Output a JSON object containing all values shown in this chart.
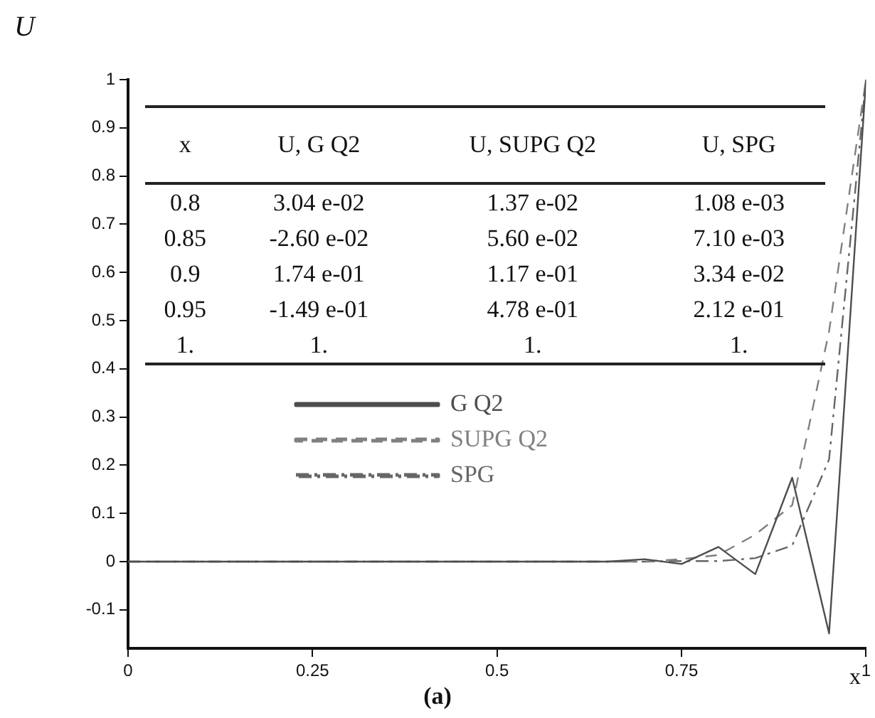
{
  "chart_data": {
    "type": "line",
    "title": "(a)",
    "xlabel": "x",
    "ylabel": "U",
    "x": [
      0,
      0.05,
      0.1,
      0.15,
      0.2,
      0.25,
      0.3,
      0.35,
      0.4,
      0.45,
      0.5,
      0.55,
      0.6,
      0.65,
      0.7,
      0.75,
      0.8,
      0.85,
      0.9,
      0.95,
      1
    ],
    "series": [
      {
        "name": "G Q2",
        "color": "#4d4d4d",
        "line_style": "solid",
        "values": [
          0,
          0,
          0,
          0,
          0,
          0,
          0,
          0,
          0,
          0,
          0,
          0,
          0,
          0,
          0.005,
          -0.005,
          0.0304,
          -0.026,
          0.174,
          -0.149,
          1
        ]
      },
      {
        "name": "SUPG Q2",
        "color": "#808080",
        "line_style": "dashed",
        "values": [
          0,
          0,
          0,
          0,
          0,
          0,
          0,
          0,
          0,
          0,
          0,
          0,
          0,
          0,
          0,
          0.005,
          0.0137,
          0.056,
          0.117,
          0.478,
          1
        ]
      },
      {
        "name": "SPG",
        "color": "#666666",
        "line_style": "dashdot",
        "values": [
          0,
          0,
          0,
          0,
          0,
          0,
          0,
          0,
          0,
          0,
          0,
          0,
          0,
          0,
          0,
          0.001,
          0.00108,
          0.0071,
          0.0334,
          0.212,
          1
        ]
      }
    ],
    "xlim": [
      0,
      1
    ],
    "xticks": [
      0,
      0.25,
      0.5,
      0.75,
      1
    ],
    "ylim": [
      -0.18,
      1
    ],
    "yticks": [
      -0.1,
      0,
      0.1,
      0.2,
      0.3,
      0.4,
      0.5,
      0.6,
      0.7,
      0.8,
      0.9,
      1
    ],
    "grid": false,
    "legend": "left",
    "marker": "none",
    "annotations": [
      "x",
      "U, G Q2",
      "U, SUPG Q2",
      "U, SPG",
      "0.8",
      "3.04 e-02",
      "1.37 e-02",
      "1.08 e-03",
      "0.85",
      "-2.60 e-02",
      "5.60 e-02",
      "7.10 e-03",
      "0.9",
      "1.74 e-01",
      "1.17 e-01",
      "3.34 e-02",
      "0.95",
      "-1.49 e-01",
      "4.78 e-01",
      "2.12 e-01",
      "1.",
      "1.",
      "1.",
      "1."
    ]
  }
}
